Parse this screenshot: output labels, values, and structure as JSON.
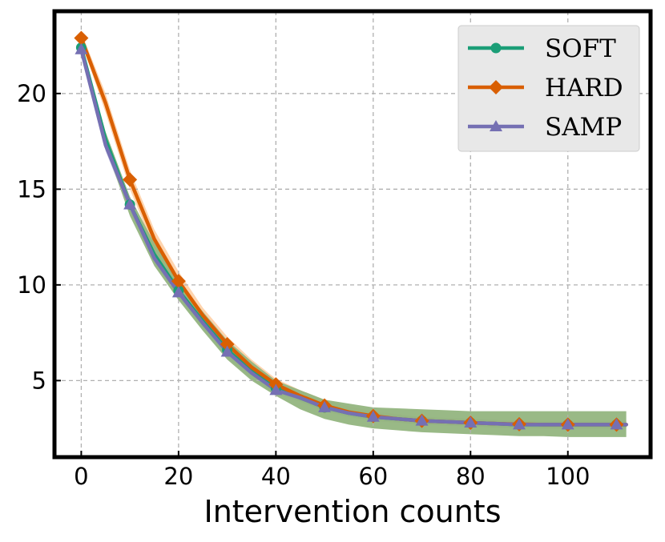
{
  "chart_data": {
    "type": "line",
    "title": "",
    "xlabel": "Intervention counts",
    "ylabel": "",
    "xlim": [
      -5.5,
      117
    ],
    "ylim": [
      1,
      24.3
    ],
    "grid": true,
    "legend_position": "top-right",
    "x_ticks": [
      0,
      20,
      40,
      60,
      80,
      100
    ],
    "x_tick_labels": [
      "0",
      "20",
      "40",
      "60",
      "80",
      "100"
    ],
    "y_ticks": [
      5,
      10,
      15,
      20
    ],
    "y_tick_labels": [
      "5",
      "10",
      "15",
      "20"
    ],
    "x": [
      0,
      5,
      10,
      15,
      20,
      25,
      30,
      35,
      40,
      45,
      50,
      55,
      60,
      65,
      70,
      75,
      80,
      85,
      90,
      95,
      100,
      105,
      110,
      112
    ],
    "series": [
      {
        "name": "SOFT",
        "color": "#1b9e77",
        "marker": "circle",
        "values": [
          22.4,
          17.6,
          14.2,
          11.6,
          9.7,
          8.1,
          6.6,
          5.5,
          4.6,
          4.1,
          3.6,
          3.3,
          3.1,
          3.0,
          2.9,
          2.85,
          2.8,
          2.75,
          2.7,
          2.7,
          2.7,
          2.7,
          2.7,
          2.7
        ],
        "band_lower": [
          22.3,
          17.2,
          13.6,
          11.0,
          9.2,
          7.6,
          6.1,
          5.0,
          4.2,
          3.5,
          3.0,
          2.7,
          2.5,
          2.4,
          2.3,
          2.25,
          2.2,
          2.15,
          2.1,
          2.1,
          2.05,
          2.05,
          2.05,
          2.05
        ],
        "band_upper": [
          22.5,
          18.0,
          14.6,
          12.2,
          10.2,
          8.6,
          7.1,
          6.0,
          5.0,
          4.5,
          4.0,
          3.8,
          3.6,
          3.55,
          3.5,
          3.45,
          3.4,
          3.4,
          3.4,
          3.4,
          3.4,
          3.4,
          3.4,
          3.4
        ],
        "marker_x": [
          0,
          10,
          20,
          30,
          40,
          50,
          60,
          70,
          80,
          90,
          100,
          110
        ],
        "marker_values": [
          22.4,
          14.2,
          9.7,
          6.6,
          4.6,
          3.6,
          3.1,
          2.9,
          2.8,
          2.7,
          2.7,
          2.7
        ]
      },
      {
        "name": "HARD",
        "color": "#d95f02",
        "marker": "diamond",
        "values": [
          22.9,
          19.5,
          15.5,
          12.4,
          10.2,
          8.4,
          6.9,
          5.7,
          4.8,
          4.2,
          3.7,
          3.35,
          3.15,
          3.0,
          2.9,
          2.85,
          2.8,
          2.75,
          2.72,
          2.7,
          2.7,
          2.7,
          2.7,
          2.7
        ],
        "band_lower": [
          22.7,
          19.0,
          15.0,
          11.9,
          9.8,
          8.0,
          6.5,
          5.3,
          4.5,
          3.9,
          3.4,
          3.1,
          2.9,
          2.8,
          2.7,
          2.65,
          2.6,
          2.55,
          2.52,
          2.5,
          2.5,
          2.5,
          2.5,
          2.5
        ],
        "band_upper": [
          23.2,
          20.0,
          16.0,
          12.9,
          10.7,
          8.8,
          7.3,
          6.1,
          5.1,
          4.5,
          4.0,
          3.65,
          3.4,
          3.25,
          3.1,
          3.05,
          3.0,
          2.95,
          2.92,
          2.9,
          2.9,
          2.9,
          2.9,
          2.9
        ],
        "marker_x": [
          0,
          10,
          20,
          30,
          40,
          50,
          60,
          70,
          80,
          90,
          100,
          110
        ],
        "marker_values": [
          22.9,
          15.5,
          10.2,
          6.9,
          4.8,
          3.7,
          3.15,
          2.9,
          2.8,
          2.72,
          2.7,
          2.7
        ]
      },
      {
        "name": "SAMP",
        "color": "#7570b3",
        "marker": "triangle",
        "values": [
          22.3,
          17.3,
          14.2,
          11.4,
          9.6,
          8.0,
          6.5,
          5.4,
          4.5,
          4.1,
          3.6,
          3.3,
          3.1,
          3.0,
          2.9,
          2.85,
          2.8,
          2.75,
          2.7,
          2.7,
          2.7,
          2.7,
          2.7,
          2.7
        ],
        "band_lower": [
          22.2,
          17.0,
          13.8,
          11.1,
          9.3,
          7.7,
          6.2,
          5.1,
          4.3,
          3.9,
          3.4,
          3.1,
          2.9,
          2.8,
          2.7,
          2.65,
          2.6,
          2.55,
          2.5,
          2.5,
          2.5,
          2.5,
          2.5,
          2.5
        ],
        "band_upper": [
          22.4,
          17.6,
          14.6,
          11.8,
          9.9,
          8.3,
          6.8,
          5.7,
          4.8,
          4.3,
          3.8,
          3.5,
          3.3,
          3.2,
          3.1,
          3.05,
          3.0,
          2.95,
          2.9,
          2.9,
          2.9,
          2.9,
          2.9,
          2.9
        ],
        "marker_x": [
          0,
          10,
          20,
          30,
          40,
          50,
          60,
          70,
          80,
          90,
          100,
          110
        ],
        "marker_values": [
          22.3,
          14.2,
          9.6,
          6.5,
          4.5,
          3.6,
          3.1,
          2.9,
          2.8,
          2.7,
          2.7,
          2.7
        ]
      }
    ],
    "band_colors": {
      "SOFT": "#93b57f",
      "HARD": "#fdc28c",
      "SAMP": "#a9a5d4"
    }
  }
}
